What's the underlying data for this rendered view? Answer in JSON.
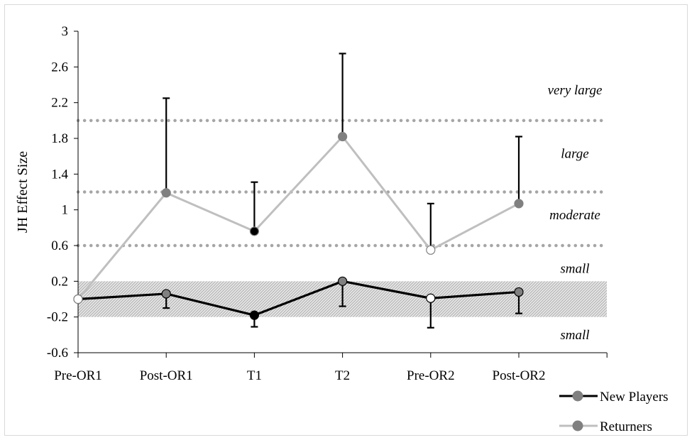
{
  "chart_data": {
    "type": "line",
    "title": "",
    "xlabel": "",
    "ylabel": "JH Effect Size",
    "ylim": [
      -0.6,
      3
    ],
    "yticks": [
      "3",
      "2.6",
      "2.2",
      "1.8",
      "1.4",
      "1",
      "0.6",
      "0.2",
      "-0.2",
      "-0.6"
    ],
    "ytick_values": [
      3,
      2.6,
      2.2,
      1.8,
      1.4,
      1,
      0.6,
      0.2,
      -0.2,
      -0.6
    ],
    "categories": [
      "Pre-OR1",
      "Post-OR1",
      "T1",
      "T2",
      "Pre-OR2",
      "Post-OR2"
    ],
    "series": [
      {
        "name": "New Players",
        "color": "#000000",
        "values": [
          0.0,
          0.06,
          -0.18,
          0.2,
          0.01,
          0.08
        ],
        "error_down": [
          0,
          0.16,
          0.13,
          0.28,
          0.33,
          0.24
        ],
        "marker_fills": [
          "#ffffff",
          "#808080",
          "#000000",
          "#808080",
          "#ffffff",
          "#808080"
        ]
      },
      {
        "name": "Returners",
        "color": "#bfbfbf",
        "values": [
          0.0,
          1.19,
          0.76,
          1.82,
          0.55,
          1.07
        ],
        "error_up": [
          0,
          1.06,
          0.55,
          0.93,
          0.52,
          0.75
        ],
        "marker_fills": [
          "#ffffff",
          "#808080",
          "#000000",
          "#808080",
          "#ffffff",
          "#808080"
        ]
      }
    ],
    "thresholds": [
      0.6,
      1.2,
      2.0
    ],
    "trivial_band": [
      -0.2,
      0.2
    ],
    "region_labels": [
      {
        "text": "very large",
        "y": 2.34
      },
      {
        "text": "large",
        "y": 1.63
      },
      {
        "text": "moderate",
        "y": 0.94
      },
      {
        "text": "small",
        "y": 0.34
      },
      {
        "text": "small",
        "y": -0.4
      }
    ],
    "legend_position": "bottom-right",
    "grid": false
  }
}
